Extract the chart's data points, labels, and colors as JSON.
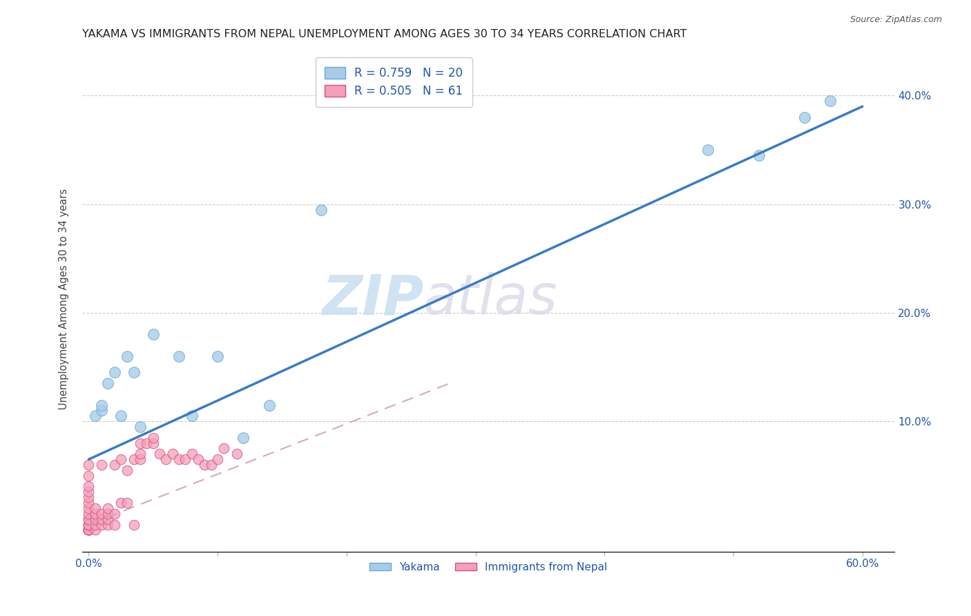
{
  "title": "YAKAMA VS IMMIGRANTS FROM NEPAL UNEMPLOYMENT AMONG AGES 30 TO 34 YEARS CORRELATION CHART",
  "source": "Source: ZipAtlas.com",
  "xlabel_ticks": [
    "0.0%",
    "",
    "",
    "",
    "",
    "",
    "60.0%"
  ],
  "xlabel_vals": [
    0.0,
    0.1,
    0.2,
    0.3,
    0.4,
    0.5,
    0.6
  ],
  "ylabel_ticks": [
    "10.0%",
    "20.0%",
    "30.0%",
    "40.0%"
  ],
  "ylabel_vals": [
    0.1,
    0.2,
    0.3,
    0.4
  ],
  "xmin": -0.005,
  "xmax": 0.625,
  "ymin": -0.02,
  "ymax": 0.445,
  "watermark_zip": "ZIP",
  "watermark_atlas": "atlas",
  "legend_label_blue": "R = 0.759   N = 20",
  "legend_label_pink": "R = 0.505   N = 61",
  "legend_bottom_blue": "Yakama",
  "legend_bottom_pink": "Immigrants from Nepal",
  "blue_color": "#a8cce8",
  "pink_color": "#f4a0b8",
  "blue_line_color": "#3a7bbf",
  "pink_line_color": "#d45080",
  "yakama_x": [
    0.005,
    0.01,
    0.01,
    0.015,
    0.02,
    0.025,
    0.03,
    0.035,
    0.04,
    0.05,
    0.07,
    0.08,
    0.1,
    0.12,
    0.14,
    0.18,
    0.48,
    0.52,
    0.555,
    0.575
  ],
  "yakama_y": [
    0.105,
    0.11,
    0.115,
    0.135,
    0.145,
    0.105,
    0.16,
    0.145,
    0.095,
    0.18,
    0.16,
    0.105,
    0.16,
    0.085,
    0.115,
    0.295,
    0.35,
    0.345,
    0.38,
    0.395
  ],
  "nepal_x": [
    0.0,
    0.0,
    0.0,
    0.0,
    0.0,
    0.0,
    0.0,
    0.0,
    0.0,
    0.0,
    0.0,
    0.0,
    0.0,
    0.0,
    0.0,
    0.0,
    0.0,
    0.0,
    0.0,
    0.0,
    0.0,
    0.005,
    0.005,
    0.005,
    0.005,
    0.005,
    0.01,
    0.01,
    0.01,
    0.01,
    0.015,
    0.015,
    0.015,
    0.015,
    0.02,
    0.02,
    0.02,
    0.025,
    0.025,
    0.03,
    0.03,
    0.035,
    0.035,
    0.04,
    0.04,
    0.04,
    0.045,
    0.05,
    0.05,
    0.055,
    0.06,
    0.065,
    0.07,
    0.075,
    0.08,
    0.085,
    0.09,
    0.095,
    0.1,
    0.105,
    0.115
  ],
  "nepal_y": [
    0.0,
    0.0,
    0.0,
    0.0,
    0.0,
    0.0,
    0.0,
    0.0,
    0.005,
    0.005,
    0.005,
    0.01,
    0.01,
    0.015,
    0.02,
    0.025,
    0.03,
    0.035,
    0.04,
    0.05,
    0.06,
    0.0,
    0.005,
    0.01,
    0.015,
    0.02,
    0.005,
    0.01,
    0.015,
    0.06,
    0.005,
    0.01,
    0.015,
    0.02,
    0.005,
    0.015,
    0.06,
    0.025,
    0.065,
    0.025,
    0.055,
    0.005,
    0.065,
    0.065,
    0.07,
    0.08,
    0.08,
    0.08,
    0.085,
    0.07,
    0.065,
    0.07,
    0.065,
    0.065,
    0.07,
    0.065,
    0.06,
    0.06,
    0.065,
    0.075,
    0.07
  ],
  "blue_trend_x": [
    0.0,
    0.6
  ],
  "blue_trend_y": [
    0.065,
    0.39
  ],
  "pink_trend_x": [
    0.0,
    0.28
  ],
  "pink_trend_y": [
    0.005,
    0.135
  ]
}
